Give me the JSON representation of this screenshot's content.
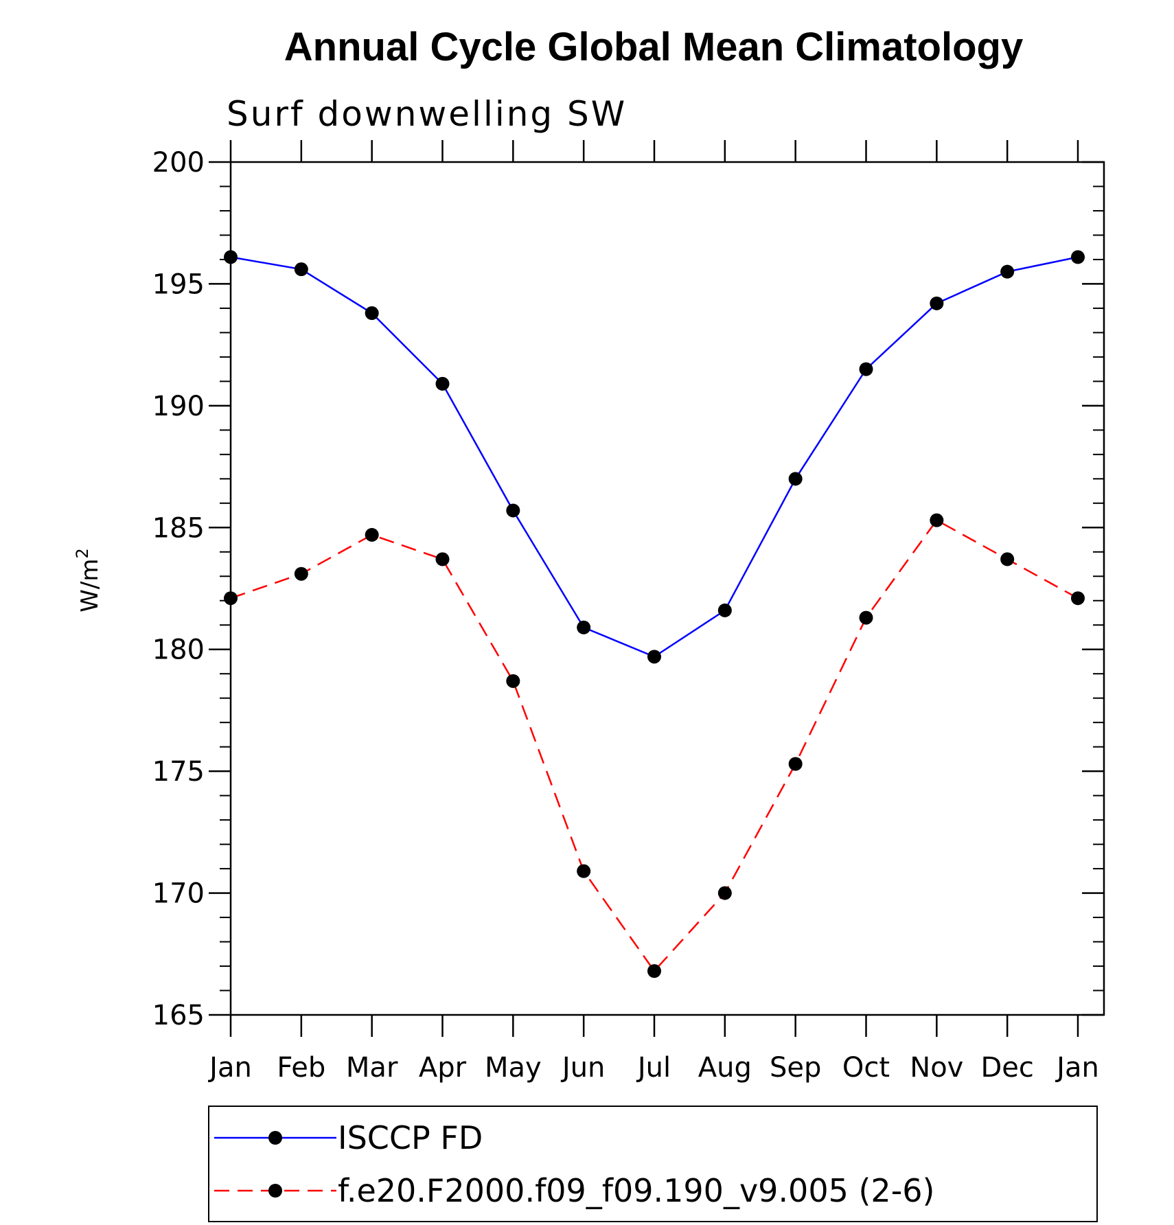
{
  "chart_data": {
    "type": "line",
    "title": "Annual Cycle Global Mean Climatology",
    "subtitle": "Surf downwelling SW",
    "ylabel": "W/m",
    "ylabel_superscript": "2",
    "ylim": [
      165,
      200
    ],
    "yticks": [
      "200",
      "195",
      "190",
      "185",
      "180",
      "175",
      "170",
      "165"
    ],
    "ytick_values": [
      200,
      195,
      190,
      185,
      180,
      175,
      170,
      165
    ],
    "categories": [
      "Jan",
      "Feb",
      "Mar",
      "Apr",
      "May",
      "Jun",
      "Jul",
      "Aug",
      "Sep",
      "Oct",
      "Nov",
      "Dec",
      "Jan"
    ],
    "grid": false,
    "legend_position": "bottom",
    "series": [
      {
        "name": "ISCCP FD",
        "color": "#0000ff",
        "dash": "solid",
        "values": [
          196.1,
          195.6,
          193.8,
          190.9,
          185.7,
          180.9,
          179.7,
          181.6,
          187.0,
          191.5,
          194.2,
          195.5,
          196.1
        ]
      },
      {
        "name": "f.e20.F2000.f09_f09.190_v9.005 (2-6)",
        "color": "#ff0000",
        "dash": "dashed",
        "values": [
          182.1,
          183.1,
          184.7,
          183.7,
          178.7,
          170.9,
          166.8,
          170.0,
          175.3,
          181.3,
          185.3,
          183.7,
          182.1
        ]
      }
    ]
  }
}
